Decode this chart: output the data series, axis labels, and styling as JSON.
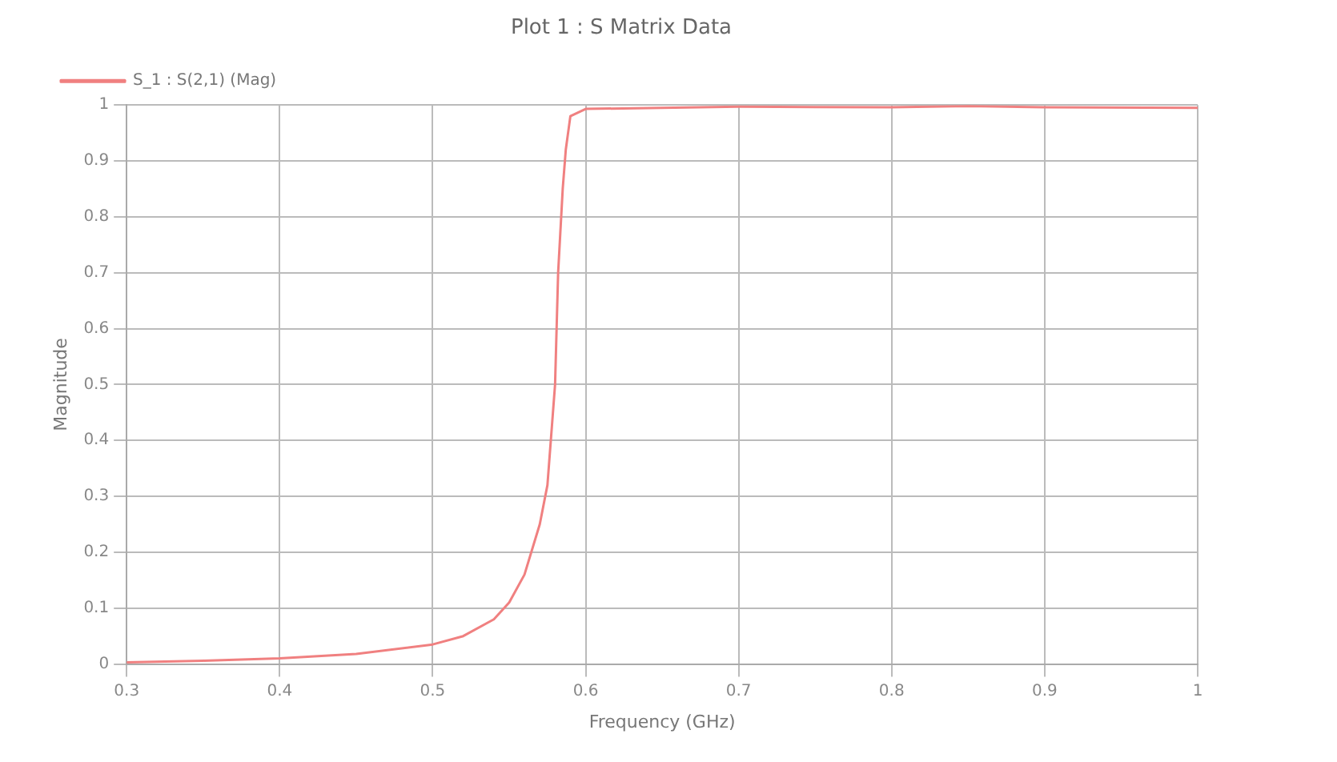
{
  "chart_data": {
    "type": "line",
    "title": "Plot 1 : S Matrix Data",
    "xlabel": "Frequency (GHz)",
    "ylabel": "Magnitude",
    "x": [
      0.3,
      0.35,
      0.4,
      0.45,
      0.5,
      0.52,
      0.54,
      0.55,
      0.56,
      0.57,
      0.575,
      0.58,
      0.582,
      0.585,
      0.587,
      0.59,
      0.6,
      0.7,
      0.8,
      0.85,
      0.9,
      1.0
    ],
    "series": [
      {
        "name": "S_1 : S(2,1) (Mag)",
        "color": "#f08080",
        "values": [
          0.003,
          0.006,
          0.01,
          0.018,
          0.035,
          0.05,
          0.08,
          0.11,
          0.16,
          0.25,
          0.32,
          0.5,
          0.7,
          0.85,
          0.92,
          0.98,
          0.993,
          0.997,
          0.996,
          0.998,
          0.996,
          0.995
        ]
      }
    ],
    "xlim": [
      0.3,
      1.0
    ],
    "xticks": [
      0.3,
      0.4,
      0.5,
      0.6,
      0.7,
      0.8,
      0.9,
      1
    ],
    "ylim": [
      0,
      1
    ],
    "yticks": [
      0,
      0.1,
      0.2,
      0.3,
      0.4,
      0.5,
      0.6,
      0.7,
      0.8,
      0.9,
      1
    ],
    "grid": true,
    "legend": "top left",
    "marker": "none",
    "line_style": "solid"
  }
}
